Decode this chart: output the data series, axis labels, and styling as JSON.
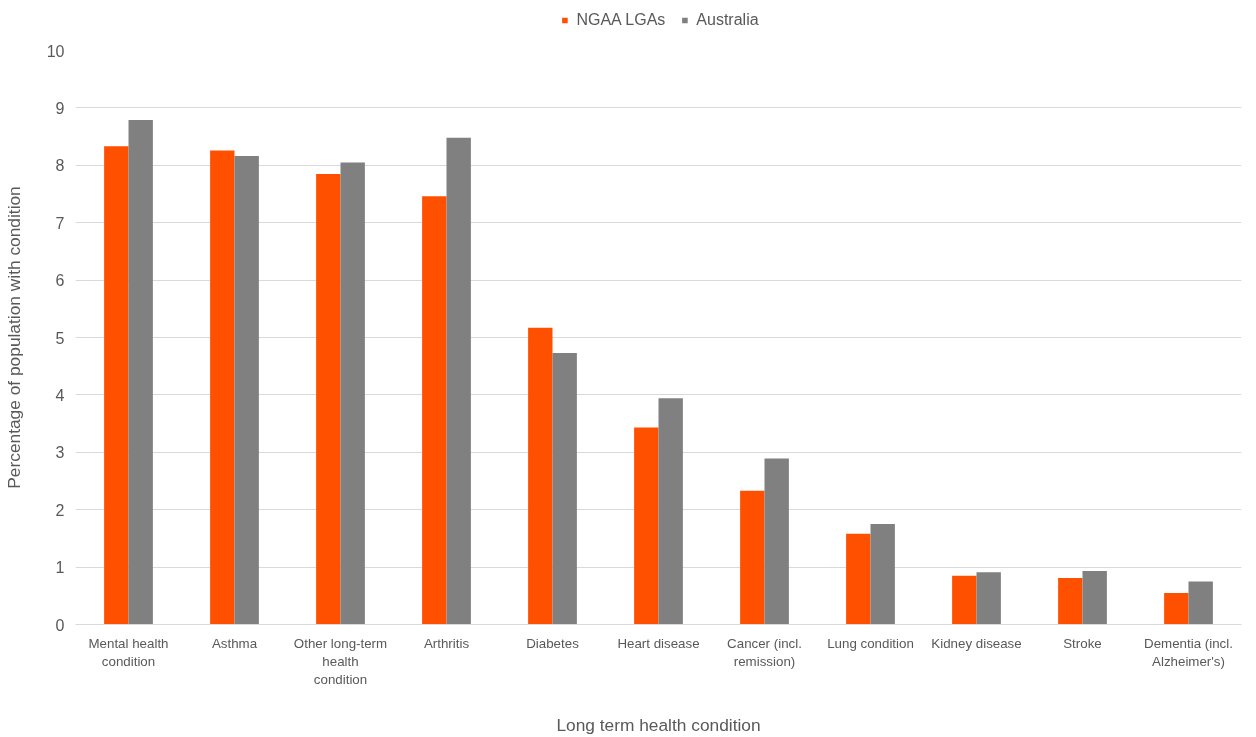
{
  "chart_data": {
    "type": "bar",
    "xlabel": "Long term health condition",
    "ylabel": "Percentage of population with condition",
    "categories": [
      "Mental health condition",
      "Asthma",
      "Other long-term health condition",
      "Arthritis",
      "Diabetes",
      "Heart disease",
      "Cancer (incl. remission)",
      "Lung condition",
      "Kidney disease",
      "Stroke",
      "Dementia (incl. Alzheimer's)"
    ],
    "series": [
      {
        "name": "NGAA LGAs",
        "color": "#ff5000",
        "values": [
          8.33,
          8.26,
          7.85,
          7.46,
          5.17,
          3.43,
          2.33,
          1.58,
          0.85,
          0.81,
          0.55
        ]
      },
      {
        "name": "Australia",
        "color": "#808080",
        "values": [
          8.79,
          8.16,
          8.05,
          8.48,
          4.73,
          3.94,
          2.89,
          1.75,
          0.91,
          0.93,
          0.75
        ]
      }
    ],
    "ylim": [
      0,
      10
    ],
    "yticks": [
      0,
      1,
      2,
      3,
      4,
      5,
      6,
      7,
      8,
      9,
      10
    ],
    "grid": "y",
    "legend": "top"
  }
}
